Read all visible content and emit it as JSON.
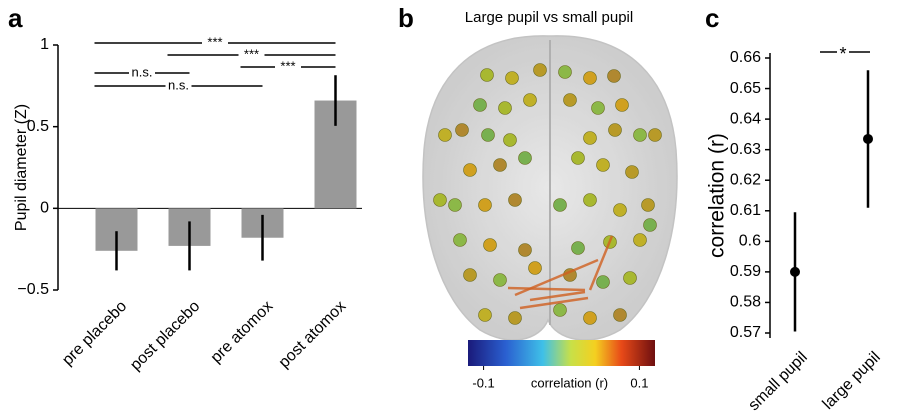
{
  "chart_data": [
    {
      "type": "bar",
      "panel": "a",
      "ylabel": "Pupil diameter (Z)",
      "categories": [
        "pre placebo",
        "post placebo",
        "pre atomox",
        "post atomox"
      ],
      "values": [
        -0.26,
        -0.23,
        -0.18,
        0.66
      ],
      "errors": [
        0.12,
        0.15,
        0.14,
        0.155
      ],
      "color": "#999999",
      "ylim": [
        -0.5,
        1
      ],
      "yticks": [
        {
          "value": -0.5,
          "label": "−0.5"
        },
        0,
        0.5,
        1
      ],
      "annotations": [
        "***",
        "***",
        "***",
        "n.s.",
        "n.s."
      ]
    },
    {
      "type": "colorbar",
      "panel": "b",
      "title": "Large pupil vs small pupil",
      "label": "correlation (r)",
      "xlim": [
        -0.12,
        0.12
      ],
      "xticks": [
        -0.1,
        0.1
      ]
    },
    {
      "type": "pointrange",
      "panel": "c",
      "ylabel": "correlation (r)",
      "categories": [
        "small pupil",
        "large pupil"
      ],
      "values": [
        0.59,
        0.6335
      ],
      "errors": [
        0.0195,
        0.0225
      ],
      "color": "#000000",
      "ylim": [
        0.57,
        0.66
      ],
      "yticks": [
        0.57,
        0.58,
        0.59,
        0.6,
        0.61,
        0.62,
        0.63,
        0.64,
        0.65,
        0.66
      ],
      "annotations": [
        "*"
      ]
    }
  ]
}
